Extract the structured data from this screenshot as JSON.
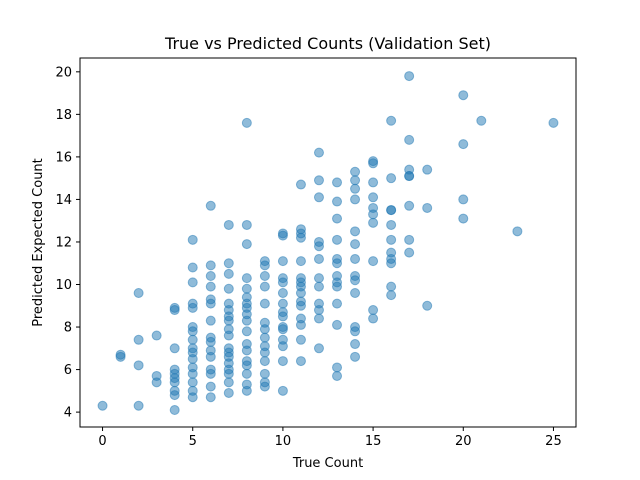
{
  "chart_data": {
    "type": "scatter",
    "title": "True vs Predicted Counts (Validation Set)",
    "xlabel": "True Count",
    "ylabel": "Predicted Expected Count",
    "xlim": [
      -1.25,
      26.25
    ],
    "ylim": [
      3.3,
      20.65
    ],
    "xticks": [
      0,
      5,
      10,
      15,
      20,
      25
    ],
    "yticks": [
      4,
      6,
      8,
      10,
      12,
      14,
      16,
      18,
      20
    ],
    "grid": false,
    "marker_color": "#1f77b4",
    "marker_alpha": 0.5,
    "points": [
      [
        0,
        4.3
      ],
      [
        1,
        6.6
      ],
      [
        1,
        6.7
      ],
      [
        2,
        9.6
      ],
      [
        2,
        7.4
      ],
      [
        2,
        6.2
      ],
      [
        2,
        4.3
      ],
      [
        3,
        7.6
      ],
      [
        3,
        5.7
      ],
      [
        3,
        5.4
      ],
      [
        4,
        8.9
      ],
      [
        4,
        8.8
      ],
      [
        4,
        7.0
      ],
      [
        4,
        6.0
      ],
      [
        4,
        5.8
      ],
      [
        4,
        5.6
      ],
      [
        4,
        5.4
      ],
      [
        4,
        5.0
      ],
      [
        4,
        4.8
      ],
      [
        4,
        4.1
      ],
      [
        5,
        12.1
      ],
      [
        5,
        10.8
      ],
      [
        5,
        10.1
      ],
      [
        5,
        9.1
      ],
      [
        5,
        8.9
      ],
      [
        5,
        8.0
      ],
      [
        5,
        7.8
      ],
      [
        5,
        7.4
      ],
      [
        5,
        7.0
      ],
      [
        5,
        6.8
      ],
      [
        5,
        6.5
      ],
      [
        5,
        6.1
      ],
      [
        5,
        5.8
      ],
      [
        5,
        5.4
      ],
      [
        5,
        5.0
      ],
      [
        5,
        4.7
      ],
      [
        6,
        13.7
      ],
      [
        6,
        10.9
      ],
      [
        6,
        10.4
      ],
      [
        6,
        9.9
      ],
      [
        6,
        9.3
      ],
      [
        6,
        9.1
      ],
      [
        6,
        8.3
      ],
      [
        6,
        7.5
      ],
      [
        6,
        7.3
      ],
      [
        6,
        6.9
      ],
      [
        6,
        6.6
      ],
      [
        6,
        6.0
      ],
      [
        6,
        5.8
      ],
      [
        6,
        5.2
      ],
      [
        6,
        4.7
      ],
      [
        7,
        12.8
      ],
      [
        7,
        11.0
      ],
      [
        7,
        10.5
      ],
      [
        7,
        9.8
      ],
      [
        7,
        9.1
      ],
      [
        7,
        8.8
      ],
      [
        7,
        8.5
      ],
      [
        7,
        8.3
      ],
      [
        7,
        7.9
      ],
      [
        7,
        7.6
      ],
      [
        7,
        7.0
      ],
      [
        7,
        6.8
      ],
      [
        7,
        6.6
      ],
      [
        7,
        6.3
      ],
      [
        7,
        6.0
      ],
      [
        7,
        5.8
      ],
      [
        7,
        5.4
      ],
      [
        7,
        4.9
      ],
      [
        8,
        17.6
      ],
      [
        8,
        12.8
      ],
      [
        8,
        11.9
      ],
      [
        8,
        10.3
      ],
      [
        8,
        9.8
      ],
      [
        8,
        9.4
      ],
      [
        8,
        9.1
      ],
      [
        8,
        8.9
      ],
      [
        8,
        8.6
      ],
      [
        8,
        8.3
      ],
      [
        8,
        7.8
      ],
      [
        8,
        7.2
      ],
      [
        8,
        6.9
      ],
      [
        8,
        6.4
      ],
      [
        8,
        6.2
      ],
      [
        8,
        5.8
      ],
      [
        8,
        5.3
      ],
      [
        8,
        5.0
      ],
      [
        9,
        11.1
      ],
      [
        9,
        10.9
      ],
      [
        9,
        10.4
      ],
      [
        9,
        9.9
      ],
      [
        9,
        9.1
      ],
      [
        9,
        8.2
      ],
      [
        9,
        7.9
      ],
      [
        9,
        7.5
      ],
      [
        9,
        7.1
      ],
      [
        9,
        6.8
      ],
      [
        9,
        6.4
      ],
      [
        9,
        5.8
      ],
      [
        9,
        5.4
      ],
      [
        9,
        5.2
      ],
      [
        10,
        12.4
      ],
      [
        10,
        12.3
      ],
      [
        10,
        11.1
      ],
      [
        10,
        10.3
      ],
      [
        10,
        10.1
      ],
      [
        10,
        9.6
      ],
      [
        10,
        9.1
      ],
      [
        10,
        8.7
      ],
      [
        10,
        8.5
      ],
      [
        10,
        8.0
      ],
      [
        10,
        7.9
      ],
      [
        10,
        7.4
      ],
      [
        10,
        7.1
      ],
      [
        10,
        6.4
      ],
      [
        10,
        5.0
      ],
      [
        11,
        14.7
      ],
      [
        11,
        12.6
      ],
      [
        11,
        12.4
      ],
      [
        11,
        12.2
      ],
      [
        11,
        11.1
      ],
      [
        11,
        10.3
      ],
      [
        11,
        10.1
      ],
      [
        11,
        9.9
      ],
      [
        11,
        9.6
      ],
      [
        11,
        9.2
      ],
      [
        11,
        9.0
      ],
      [
        11,
        8.4
      ],
      [
        11,
        8.1
      ],
      [
        11,
        7.4
      ],
      [
        11,
        6.4
      ],
      [
        12,
        16.2
      ],
      [
        12,
        14.9
      ],
      [
        12,
        14.1
      ],
      [
        12,
        12.0
      ],
      [
        12,
        11.8
      ],
      [
        12,
        11.2
      ],
      [
        12,
        10.3
      ],
      [
        12,
        9.9
      ],
      [
        12,
        9.1
      ],
      [
        12,
        8.8
      ],
      [
        12,
        8.4
      ],
      [
        12,
        7.0
      ],
      [
        13,
        14.8
      ],
      [
        13,
        13.9
      ],
      [
        13,
        13.1
      ],
      [
        13,
        12.1
      ],
      [
        13,
        11.2
      ],
      [
        13,
        11.0
      ],
      [
        13,
        10.4
      ],
      [
        13,
        10.1
      ],
      [
        13,
        9.9
      ],
      [
        13,
        9.1
      ],
      [
        13,
        8.1
      ],
      [
        13,
        6.1
      ],
      [
        13,
        5.7
      ],
      [
        14,
        15.3
      ],
      [
        14,
        14.9
      ],
      [
        14,
        14.5
      ],
      [
        14,
        14.0
      ],
      [
        14,
        12.5
      ],
      [
        14,
        11.9
      ],
      [
        14,
        11.2
      ],
      [
        14,
        10.4
      ],
      [
        14,
        10.2
      ],
      [
        14,
        9.6
      ],
      [
        14,
        8.0
      ],
      [
        14,
        7.8
      ],
      [
        14,
        7.2
      ],
      [
        14,
        6.6
      ],
      [
        15,
        15.8
      ],
      [
        15,
        15.7
      ],
      [
        15,
        14.8
      ],
      [
        15,
        14.1
      ],
      [
        15,
        13.6
      ],
      [
        15,
        13.3
      ],
      [
        15,
        12.9
      ],
      [
        15,
        11.1
      ],
      [
        15,
        8.8
      ],
      [
        15,
        8.4
      ],
      [
        16,
        17.7
      ],
      [
        16,
        15.0
      ],
      [
        16,
        13.5
      ],
      [
        16,
        13.5
      ],
      [
        16,
        12.8
      ],
      [
        16,
        12.1
      ],
      [
        16,
        11.5
      ],
      [
        16,
        11.2
      ],
      [
        16,
        11.0
      ],
      [
        16,
        9.9
      ],
      [
        16,
        9.5
      ],
      [
        17,
        19.8
      ],
      [
        17,
        16.8
      ],
      [
        17,
        15.4
      ],
      [
        17,
        15.1
      ],
      [
        17,
        15.1
      ],
      [
        17,
        13.7
      ],
      [
        17,
        12.1
      ],
      [
        17,
        11.5
      ],
      [
        18,
        15.4
      ],
      [
        18,
        13.6
      ],
      [
        18,
        9.0
      ],
      [
        20,
        18.9
      ],
      [
        20,
        16.6
      ],
      [
        20,
        14.0
      ],
      [
        20,
        13.1
      ],
      [
        21,
        17.7
      ],
      [
        23,
        12.5
      ],
      [
        25,
        17.6
      ]
    ]
  }
}
